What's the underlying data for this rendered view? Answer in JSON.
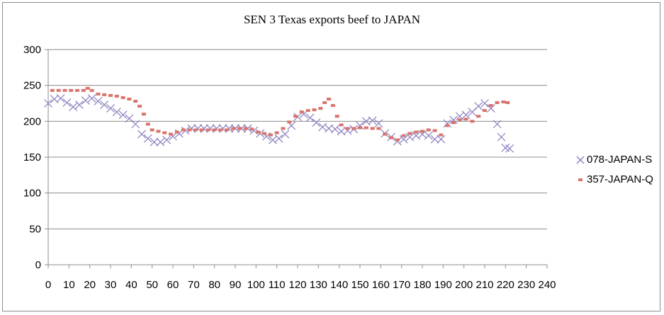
{
  "chart_data": {
    "type": "scatter",
    "title": "SEN 3 Texas exports beef to JAPAN",
    "xlabel": "",
    "ylabel": "",
    "xlim": [
      0,
      240
    ],
    "ylim": [
      0,
      300
    ],
    "x_ticks": [
      "0",
      "10",
      "20",
      "30",
      "40",
      "50",
      "60",
      "70",
      "80",
      "90",
      "100",
      "110",
      "120",
      "130",
      "140",
      "150",
      "160",
      "170",
      "180",
      "190",
      "200",
      "210",
      "220",
      "230",
      "240"
    ],
    "y_ticks": [
      "0",
      "50",
      "100",
      "150",
      "200",
      "250",
      "300"
    ],
    "grid": "horizontal",
    "legend_position": "right",
    "series": [
      {
        "name": "078-JAPAN-S",
        "marker": "x",
        "color": "#8a7fc0",
        "points": [
          [
            0,
            225
          ],
          [
            3,
            231
          ],
          [
            6,
            232
          ],
          [
            9,
            226
          ],
          [
            12,
            220
          ],
          [
            15,
            223
          ],
          [
            18,
            229
          ],
          [
            21,
            232
          ],
          [
            24,
            228
          ],
          [
            27,
            223
          ],
          [
            30,
            218
          ],
          [
            33,
            213
          ],
          [
            36,
            209
          ],
          [
            39,
            204
          ],
          [
            42,
            196
          ],
          [
            45,
            182
          ],
          [
            48,
            176
          ],
          [
            51,
            171
          ],
          [
            54,
            171
          ],
          [
            57,
            174
          ],
          [
            60,
            179
          ],
          [
            63,
            183
          ],
          [
            66,
            187
          ],
          [
            69,
            190
          ],
          [
            72,
            190
          ],
          [
            75,
            190
          ],
          [
            78,
            190
          ],
          [
            81,
            190
          ],
          [
            84,
            190
          ],
          [
            87,
            190
          ],
          [
            90,
            190
          ],
          [
            93,
            190
          ],
          [
            96,
            190
          ],
          [
            99,
            187
          ],
          [
            102,
            183
          ],
          [
            105,
            179
          ],
          [
            108,
            174
          ],
          [
            111,
            176
          ],
          [
            114,
            182
          ],
          [
            117,
            194
          ],
          [
            120,
            206
          ],
          [
            123,
            210
          ],
          [
            126,
            205
          ],
          [
            129,
            198
          ],
          [
            132,
            192
          ],
          [
            135,
            190
          ],
          [
            138,
            189
          ],
          [
            141,
            186
          ],
          [
            144,
            187
          ],
          [
            147,
            189
          ],
          [
            150,
            194
          ],
          [
            153,
            200
          ],
          [
            156,
            201
          ],
          [
            159,
            197
          ],
          [
            162,
            183
          ],
          [
            165,
            178
          ],
          [
            168,
            172
          ],
          [
            171,
            175
          ],
          [
            174,
            178
          ],
          [
            177,
            180
          ],
          [
            180,
            182
          ],
          [
            183,
            180
          ],
          [
            186,
            175
          ],
          [
            189,
            175
          ],
          [
            192,
            197
          ],
          [
            195,
            202
          ],
          [
            198,
            207
          ],
          [
            201,
            209
          ],
          [
            204,
            213
          ],
          [
            207,
            221
          ],
          [
            210,
            225
          ],
          [
            213,
            218
          ],
          [
            216,
            196
          ],
          [
            218,
            178
          ],
          [
            220,
            163
          ],
          [
            222,
            162
          ]
        ]
      },
      {
        "name": "357-JAPAN-Q",
        "marker": "square",
        "color": "#d9736b",
        "points": [
          [
            2,
            243
          ],
          [
            5,
            243
          ],
          [
            8,
            243
          ],
          [
            11,
            243
          ],
          [
            14,
            243
          ],
          [
            17,
            243
          ],
          [
            19,
            246
          ],
          [
            21,
            243
          ],
          [
            24,
            238
          ],
          [
            27,
            237
          ],
          [
            30,
            236
          ],
          [
            33,
            235
          ],
          [
            36,
            233
          ],
          [
            39,
            231
          ],
          [
            42,
            228
          ],
          [
            44,
            221
          ],
          [
            46,
            210
          ],
          [
            48,
            196
          ],
          [
            50,
            188
          ],
          [
            53,
            186
          ],
          [
            56,
            184
          ],
          [
            59,
            182
          ],
          [
            62,
            185
          ],
          [
            65,
            188
          ],
          [
            68,
            188
          ],
          [
            71,
            188
          ],
          [
            74,
            188
          ],
          [
            77,
            188
          ],
          [
            80,
            188
          ],
          [
            83,
            188
          ],
          [
            86,
            188
          ],
          [
            89,
            190
          ],
          [
            92,
            190
          ],
          [
            95,
            190
          ],
          [
            98,
            189
          ],
          [
            101,
            185
          ],
          [
            104,
            183
          ],
          [
            107,
            181
          ],
          [
            110,
            184
          ],
          [
            113,
            190
          ],
          [
            116,
            199
          ],
          [
            119,
            207
          ],
          [
            122,
            213
          ],
          [
            125,
            215
          ],
          [
            128,
            216
          ],
          [
            131,
            218
          ],
          [
            133,
            226
          ],
          [
            135,
            231
          ],
          [
            137,
            222
          ],
          [
            139,
            207
          ],
          [
            141,
            195
          ],
          [
            144,
            190
          ],
          [
            147,
            190
          ],
          [
            150,
            191
          ],
          [
            153,
            191
          ],
          [
            156,
            190
          ],
          [
            159,
            190
          ],
          [
            162,
            182
          ],
          [
            165,
            177
          ],
          [
            168,
            174
          ],
          [
            171,
            180
          ],
          [
            174,
            183
          ],
          [
            177,
            185
          ],
          [
            180,
            186
          ],
          [
            183,
            188
          ],
          [
            186,
            187
          ],
          [
            189,
            181
          ],
          [
            192,
            194
          ],
          [
            195,
            198
          ],
          [
            198,
            202
          ],
          [
            201,
            203
          ],
          [
            204,
            200
          ],
          [
            207,
            207
          ],
          [
            210,
            215
          ],
          [
            213,
            222
          ],
          [
            216,
            226
          ],
          [
            219,
            227
          ],
          [
            221,
            226
          ]
        ]
      }
    ]
  }
}
